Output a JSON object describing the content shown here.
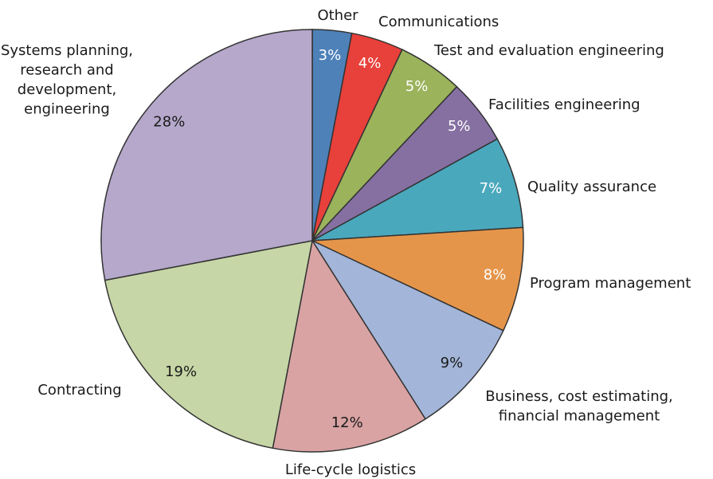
{
  "chart_data": {
    "type": "pie",
    "categories": [
      "Other",
      "Communications",
      "Test and evaluation engineering",
      "Facilities engineering",
      "Quality assurance",
      "Program management",
      "Business, cost estimating,\nfinancial management",
      "Life-cycle logistics",
      "Contracting",
      "Systems planning,\nresearch and\ndevelopment,\nengineering"
    ],
    "values": [
      3,
      4,
      5,
      5,
      7,
      8,
      9,
      12,
      19,
      28
    ],
    "value_labels": [
      "3%",
      "4%",
      "5%",
      "5%",
      "7%",
      "8%",
      "9%",
      "12%",
      "19%",
      "28%"
    ],
    "colors": [
      "#4f81b9",
      "#e8403a",
      "#9bb35b",
      "#8670a2",
      "#4aa8bd",
      "#e5954a",
      "#a3b6d9",
      "#d9a3a3",
      "#c6d6a6",
      "#b5a8cb"
    ],
    "value_label_colors": [
      "#ffffff",
      "#ffffff",
      "#ffffff",
      "#ffffff",
      "#ffffff",
      "#ffffff",
      "#1a1a1a",
      "#1a1a1a",
      "#1a1a1a",
      "#1a1a1a"
    ]
  }
}
